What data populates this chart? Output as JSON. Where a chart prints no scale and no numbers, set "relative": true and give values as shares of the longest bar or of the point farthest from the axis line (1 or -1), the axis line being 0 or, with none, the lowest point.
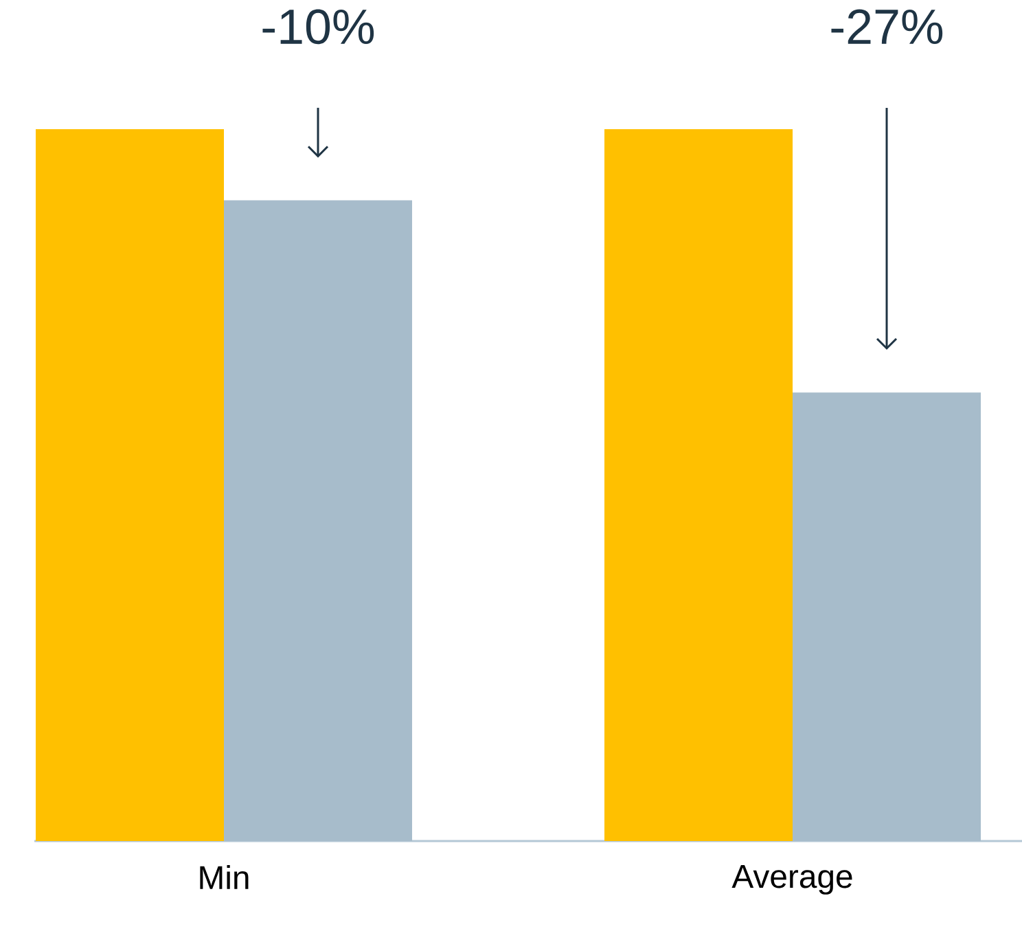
{
  "chart_data": {
    "type": "bar",
    "relative": true,
    "categories": [
      "Min",
      "Average"
    ],
    "series": [
      {
        "color": "#ffc000",
        "values": [
          1,
          1
        ]
      },
      {
        "color": "#a7bccb",
        "values": [
          0.9,
          0.63
        ]
      }
    ],
    "annotations": [
      "-10%",
      "-27%"
    ]
  }
}
